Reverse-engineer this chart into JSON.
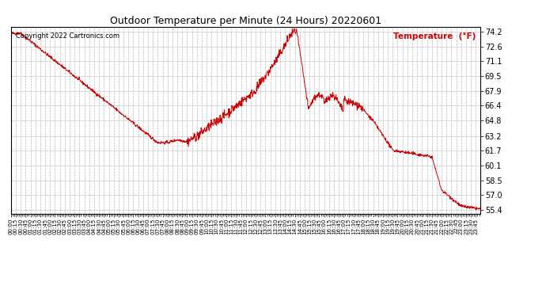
{
  "title": "Outdoor Temperature per Minute (24 Hours) 20220601",
  "ylabel": "Temperature  (°F)",
  "line_color": "#cc0000",
  "background_color": "#ffffff",
  "grid_color": "#aaaaaa",
  "copyright_text": "Copyright 2022 Cartronics.com",
  "yticks": [
    55.4,
    57.0,
    58.5,
    60.1,
    61.7,
    63.2,
    64.8,
    66.4,
    67.9,
    69.5,
    71.1,
    72.6,
    74.2
  ],
  "ylim": [
    55.0,
    74.7
  ],
  "total_minutes": 1440,
  "xtick_interval": 5,
  "x_label_interval": 15
}
